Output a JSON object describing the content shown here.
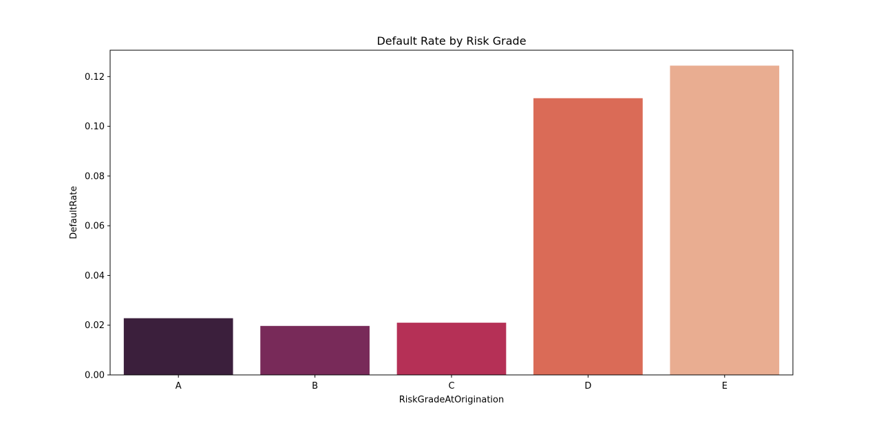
{
  "chart_data": {
    "type": "bar",
    "title": "Default Rate by Risk Grade",
    "xlabel": "RiskGradeAtOrigination",
    "ylabel": "DefaultRate",
    "categories": [
      "A",
      "B",
      "C",
      "D",
      "E"
    ],
    "values": [
      0.0228,
      0.0197,
      0.021,
      0.1113,
      0.1244
    ],
    "colors": [
      "#3b1f3c",
      "#782a59",
      "#b53056",
      "#da6b57",
      "#e9ad91"
    ],
    "ylim": [
      0,
      0.1306
    ],
    "yticks": [
      "0.00",
      "0.02",
      "0.04",
      "0.06",
      "0.08",
      "0.10",
      "0.12"
    ],
    "grid": false,
    "legend": "none"
  }
}
